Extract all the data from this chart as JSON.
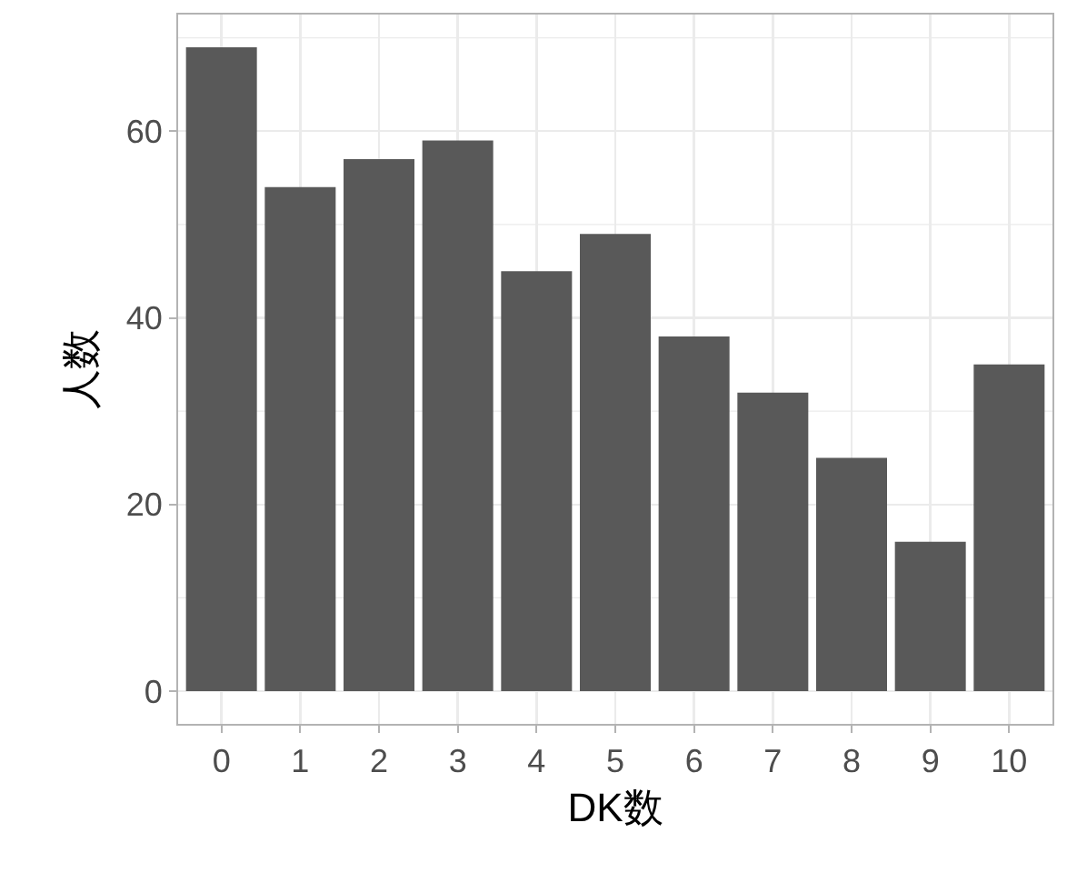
{
  "chart_data": {
    "type": "bar",
    "xlabel": "DK数",
    "ylabel": "人数",
    "categories": [
      "0",
      "1",
      "2",
      "3",
      "4",
      "5",
      "6",
      "7",
      "8",
      "9",
      "10"
    ],
    "values": [
      69,
      54,
      57,
      59,
      45,
      49,
      38,
      32,
      25,
      16,
      35
    ],
    "color": "#595959",
    "ylim": [
      -3.5,
      72.5
    ],
    "yticks": [
      0,
      20,
      40,
      60
    ],
    "grid": true
  }
}
